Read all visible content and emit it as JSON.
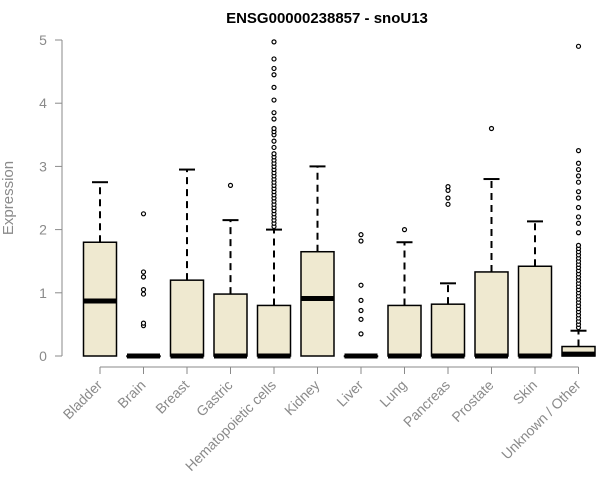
{
  "chart_data": {
    "type": "boxplot",
    "title": "ENSG00000238857 - snoU13",
    "xlabel": "",
    "ylabel": "Expression",
    "ylim": [
      0,
      5
    ],
    "yticks": [
      0,
      1,
      2,
      3,
      4,
      5
    ],
    "grid": false,
    "legend": "none",
    "box_fill": "#efe9d0",
    "box_stroke": "#000000",
    "categories": [
      "Bladder",
      "Brain",
      "Breast",
      "Gastric",
      "Hematopoietic cells",
      "Kidney",
      "Liver",
      "Lung",
      "Pancreas",
      "Prostate",
      "Skin",
      "Unknown / Other"
    ],
    "boxes": [
      {
        "category": "Bladder",
        "whisker_low": 0,
        "q1": 0,
        "median": 0.87,
        "q3": 1.8,
        "whisker_high": 2.75,
        "outliers": []
      },
      {
        "category": "Brain",
        "whisker_low": 0,
        "q1": 0,
        "median": 0,
        "q3": 0,
        "whisker_high": 0,
        "outliers": [
          0.48,
          0.52,
          0.98,
          1.05,
          1.25,
          1.33,
          2.25
        ]
      },
      {
        "category": "Breast",
        "whisker_low": 0,
        "q1": 0,
        "median": 0,
        "q3": 1.2,
        "whisker_high": 2.95,
        "outliers": []
      },
      {
        "category": "Gastric",
        "whisker_low": 0,
        "q1": 0,
        "median": 0,
        "q3": 0.98,
        "whisker_high": 2.15,
        "outliers": [
          2.7
        ]
      },
      {
        "category": "Hematopoietic cells",
        "whisker_low": 0,
        "q1": 0,
        "median": 0,
        "q3": 0.8,
        "whisker_high": 2.0,
        "outliers": [
          2.05,
          2.1,
          2.15,
          2.2,
          2.25,
          2.3,
          2.35,
          2.4,
          2.45,
          2.5,
          2.55,
          2.6,
          2.65,
          2.7,
          2.75,
          2.8,
          2.85,
          2.9,
          2.95,
          3.0,
          3.05,
          3.1,
          3.15,
          3.2,
          3.3,
          3.4,
          3.5,
          3.55,
          3.6,
          3.75,
          3.85,
          4.05,
          4.25,
          4.45,
          4.55,
          4.7,
          4.97
        ]
      },
      {
        "category": "Kidney",
        "whisker_low": 0,
        "q1": 0,
        "median": 0.91,
        "q3": 1.65,
        "whisker_high": 3.0,
        "outliers": []
      },
      {
        "category": "Liver",
        "whisker_low": 0,
        "q1": 0,
        "median": 0,
        "q3": 0,
        "whisker_high": 0,
        "outliers": [
          0.35,
          0.58,
          0.72,
          0.88,
          1.12,
          1.82,
          1.92
        ]
      },
      {
        "category": "Lung",
        "whisker_low": 0,
        "q1": 0,
        "median": 0,
        "q3": 0.8,
        "whisker_high": 1.8,
        "outliers": [
          2.0
        ]
      },
      {
        "category": "Pancreas",
        "whisker_low": 0,
        "q1": 0,
        "median": 0,
        "q3": 0.82,
        "whisker_high": 1.15,
        "outliers": [
          2.4,
          2.5,
          2.62,
          2.68
        ]
      },
      {
        "category": "Prostate",
        "whisker_low": 0,
        "q1": 0,
        "median": 0,
        "q3": 1.33,
        "whisker_high": 2.8,
        "outliers": [
          3.6
        ]
      },
      {
        "category": "Skin",
        "whisker_low": 0,
        "q1": 0,
        "median": 0,
        "q3": 1.42,
        "whisker_high": 2.13,
        "outliers": []
      },
      {
        "category": "Unknown / Other",
        "whisker_low": 0,
        "q1": 0,
        "median": 0.03,
        "q3": 0.15,
        "whisker_high": 0.4,
        "outliers": [
          0.45,
          0.5,
          0.55,
          0.6,
          0.65,
          0.7,
          0.75,
          0.8,
          0.85,
          0.9,
          0.95,
          1.0,
          1.05,
          1.1,
          1.15,
          1.2,
          1.25,
          1.3,
          1.35,
          1.4,
          1.45,
          1.5,
          1.55,
          1.6,
          1.65,
          1.7,
          1.75,
          1.95,
          2.1,
          2.2,
          2.35,
          2.5,
          2.6,
          2.75,
          2.85,
          2.95,
          3.05,
          3.25,
          4.9
        ]
      }
    ]
  }
}
